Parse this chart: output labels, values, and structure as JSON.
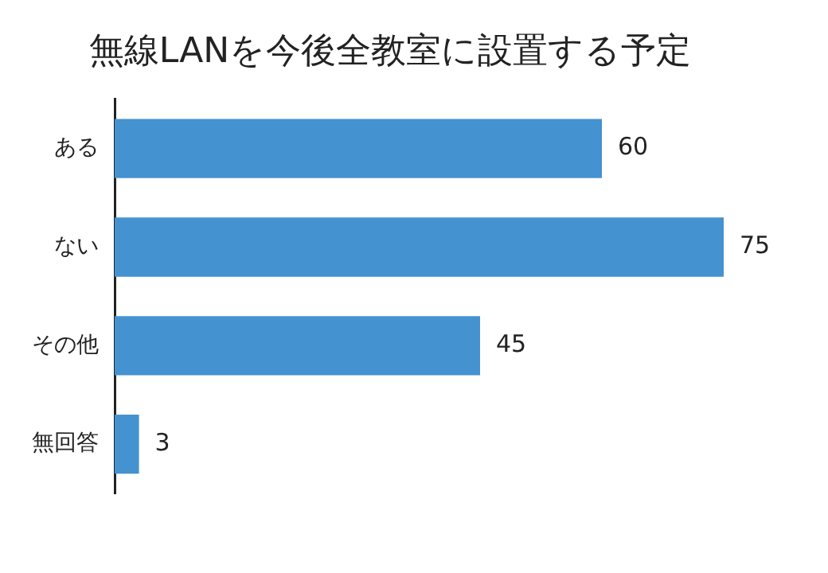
{
  "chart_data": {
    "type": "bar",
    "title": "無線LANを今後全教室に設置する予定",
    "orientation": "horizontal",
    "categories": [
      "ある",
      "ない",
      "その他",
      "無回答"
    ],
    "values": [
      60,
      75,
      45,
      3
    ],
    "color": "#4592d0",
    "data_labels": true,
    "legend": false
  }
}
